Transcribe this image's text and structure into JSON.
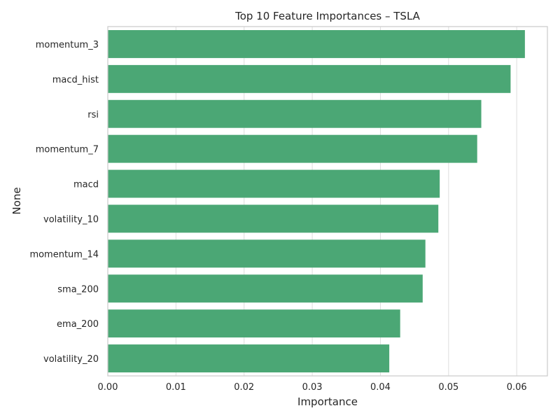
{
  "chart_data": {
    "type": "bar",
    "orientation": "horizontal",
    "title": "Top 10 Feature Importances – TSLA",
    "xlabel": "Importance",
    "ylabel": "None",
    "categories": [
      "momentum_3",
      "macd_hist",
      "rsi",
      "momentum_7",
      "macd",
      "volatility_10",
      "momentum_14",
      "sma_200",
      "ema_200",
      "volatility_20"
    ],
    "values": [
      0.0612,
      0.0591,
      0.0548,
      0.0542,
      0.0487,
      0.0485,
      0.0466,
      0.0462,
      0.0429,
      0.0413
    ],
    "xlim": [
      0,
      0.0645
    ],
    "xticks": [
      "0.00",
      "0.01",
      "0.02",
      "0.03",
      "0.04",
      "0.05",
      "0.06"
    ],
    "grid": true,
    "bar_color": "#4ba775",
    "grid_color": "#dddddd",
    "spine_color": "#cccccc"
  }
}
